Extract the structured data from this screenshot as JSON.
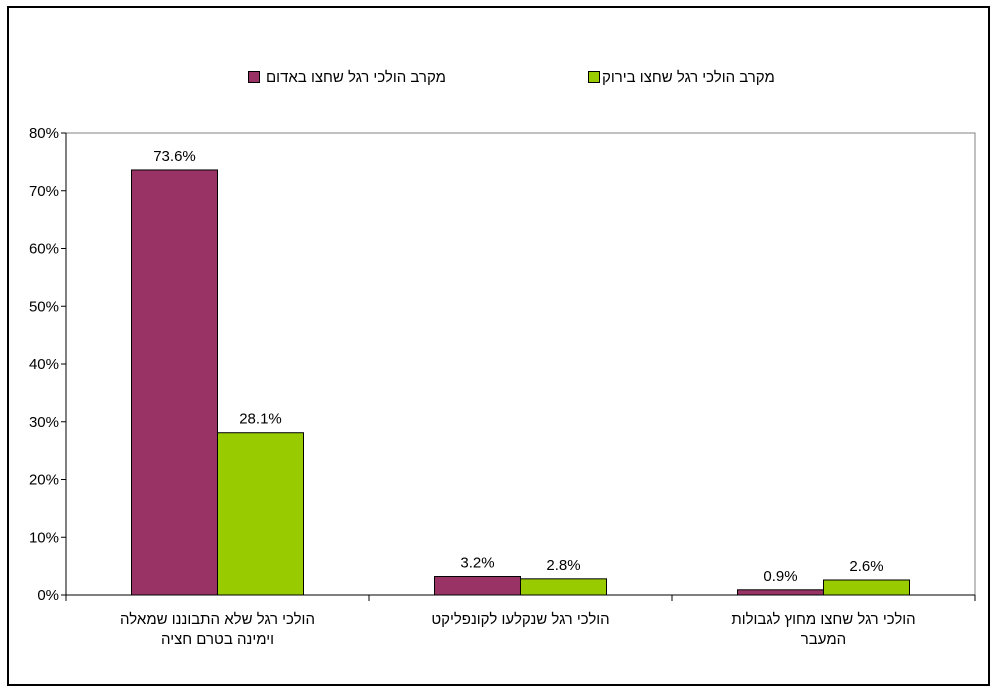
{
  "chart_data": {
    "type": "bar",
    "categories": [
      [
        "הולכי רגל שלא התבוננו שמאלה",
        "וימינה בטרם חציה"
      ],
      [
        "הולכי רגל שנקלעו לקונפליקט"
      ],
      [
        "הולכי רגל שחצו מחוץ לגבולות",
        "המעבר"
      ]
    ],
    "series": [
      {
        "name": "מקרב הולכי רגל שחצו באדום",
        "values": [
          73.6,
          3.2,
          0.9
        ],
        "color": "#993366"
      },
      {
        "name": "מקרב הולכי רגל שחצו בירוק",
        "values": [
          28.1,
          2.8,
          2.6
        ],
        "color": "#99cc00"
      }
    ],
    "data_labels": [
      [
        "73.6%",
        "3.2%",
        "0.9%"
      ],
      [
        "28.1%",
        "2.8%",
        "2.6%"
      ]
    ],
    "ylim": [
      0,
      80
    ],
    "yticks": [
      0,
      10,
      20,
      30,
      40,
      50,
      60,
      70,
      80
    ],
    "ytick_suffix": "%",
    "grid": false,
    "legend_position": "top",
    "title": "",
    "xlabel": "",
    "ylabel": ""
  }
}
